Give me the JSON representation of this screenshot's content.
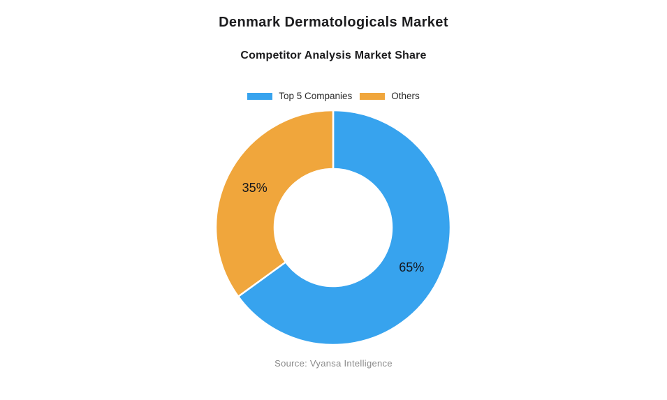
{
  "header": {
    "title": "Denmark Dermatologicals Market",
    "subtitle": "Competitor Analysis Market Share"
  },
  "footer": {
    "source": "Source: Vyansa Intelligence"
  },
  "chart_data": {
    "type": "pie",
    "variant": "donut",
    "title": "Denmark Dermatologicals Market",
    "subtitle": "Competitor Analysis Market Share",
    "labels": [
      "Top 5 Companies",
      "Others"
    ],
    "values": [
      65,
      35
    ],
    "value_labels": [
      "65%",
      "35%"
    ],
    "colors": [
      "#37A3EE",
      "#F0A63C"
    ],
    "legend_position": "top",
    "start_angle_deg": 0,
    "direction": "clockwise",
    "hole_ratio": 0.5,
    "source": "Source: Vyansa Intelligence"
  },
  "style": {
    "background": "#ffffff",
    "title_color": "#1c1c1e",
    "subtitle_color": "#1c1c1e",
    "legend_text_color": "#2b2b2b",
    "value_label_color": "#14161c",
    "source_color": "#8a8a8a",
    "slice_border_color": "#ffffff"
  }
}
